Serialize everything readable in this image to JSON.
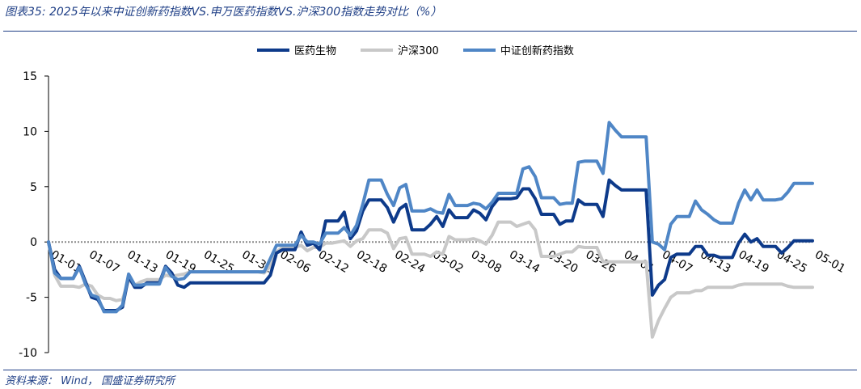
{
  "title": "图表35:  2025年以来中证创新药指数VS.申万医药指数VS.沪深300指数走势对比（%）",
  "source": "资料来源： Wind， 国盛证券研究所",
  "chart_data": {
    "type": "line",
    "title": "",
    "xlabel": "",
    "ylabel": "",
    "ylim": [
      -10,
      15
    ],
    "yticks": [
      -10,
      -5,
      0,
      5,
      10,
      15
    ],
    "legend_position": "top-center",
    "grid": false,
    "x_tick_labels": [
      "01-01",
      "01-07",
      "01-13",
      "01-19",
      "01-25",
      "01-31",
      "02-06",
      "02-12",
      "02-18",
      "02-24",
      "03-02",
      "03-08",
      "03-14",
      "03-20",
      "03-26",
      "04-01",
      "04-07",
      "04-13",
      "04-19",
      "04-25",
      "05-01"
    ],
    "series": [
      {
        "name": "医药生物",
        "color": "#0d3a8a",
        "values": [
          0,
          -2.5,
          -3.3,
          -3.3,
          -3.3,
          -2.2,
          -3.6,
          -5,
          -5.2,
          -6.2,
          -6.2,
          -6.2,
          -5.9,
          -3.1,
          -4.1,
          -4.1,
          -3.7,
          -3.7,
          -3.7,
          -2.2,
          -2.8,
          -3.9,
          -4.1,
          -3.7,
          -3.7,
          -3.7,
          -3.7,
          -3.7,
          -3.7,
          -3.7,
          -3.7,
          -3.7,
          -3.7,
          -3.7,
          -3.7,
          -3.7,
          -3.0,
          -1.0,
          -0.7,
          -0.7,
          -0.7,
          0.9,
          -0.3,
          -0.1,
          -0.7,
          1.9,
          1.9,
          1.9,
          2.7,
          0.3,
          1.0,
          2.8,
          3.8,
          3.8,
          3.8,
          3.1,
          1.8,
          3.0,
          3.4,
          1.1,
          1.1,
          1.1,
          1.6,
          2.3,
          1.4,
          2.9,
          2.2,
          2.2,
          2.2,
          2.9,
          2.6,
          2.0,
          3.2,
          3.9,
          3.9,
          3.9,
          4.0,
          4.8,
          4.8,
          3.9,
          2.5,
          2.5,
          2.5,
          1.6,
          1.9,
          1.9,
          3.8,
          3.4,
          3.4,
          3.4,
          2.3,
          5.6,
          5.1,
          4.7,
          4.7,
          4.7,
          4.7,
          4.7,
          -4.8,
          -3.9,
          -3.4,
          -1.4,
          -1.1,
          -1.1,
          -1.1,
          -0.4,
          -0.4,
          -1.2,
          -1.2,
          -1.4,
          -1.4,
          -1.4,
          -0.1,
          0.7,
          0,
          0.3,
          -0.4,
          -0.4,
          -0.4,
          -1.0,
          -0.5,
          0.1,
          0.1,
          0.1,
          0.1
        ]
      },
      {
        "name": "沪深300",
        "color": "#c8c8c8",
        "values": [
          0,
          -3.0,
          -4.0,
          -4.0,
          -4.0,
          -4.1,
          -3.8,
          -4.0,
          -4.8,
          -5.1,
          -5.1,
          -5.3,
          -5.2,
          -3.4,
          -3.9,
          -3.6,
          -3.4,
          -3.4,
          -3.4,
          -3.0,
          -3.1,
          -3.0,
          -2.9,
          -2.7,
          -2.7,
          -2.7,
          -2.7,
          -2.7,
          -2.7,
          -2.7,
          -2.7,
          -2.7,
          -2.7,
          -2.7,
          -2.7,
          -2.8,
          -2.2,
          -0.9,
          -0.5,
          -0.5,
          -0.5,
          -0.3,
          -0.8,
          -0.5,
          -0.5,
          -0.1,
          -0.1,
          0,
          0.1,
          -0.4,
          0.1,
          0.3,
          1.1,
          1.1,
          1.1,
          0.8,
          -0.6,
          0.3,
          0.4,
          -1.1,
          -1.1,
          -1.1,
          -1.3,
          -0.9,
          -1.1,
          0.5,
          0.2,
          0.2,
          0.2,
          0.3,
          0.1,
          -0.2,
          0.6,
          1.8,
          1.8,
          1.8,
          1.4,
          1.6,
          1.8,
          1.1,
          -1.3,
          -1.3,
          -1.3,
          -1.1,
          -0.9,
          -0.9,
          -0.4,
          -0.5,
          -0.5,
          -0.5,
          -1.8,
          -1.8,
          -1.8,
          -1.8,
          -1.8,
          -1.8,
          -1.8,
          -1.8,
          -8.6,
          -7.1,
          -6.0,
          -5.0,
          -4.6,
          -4.6,
          -4.6,
          -4.4,
          -4.4,
          -4.1,
          -4.1,
          -4.1,
          -4.1,
          -4.1,
          -3.9,
          -3.8,
          -3.8,
          -3.8,
          -3.8,
          -3.8,
          -3.8,
          -3.8,
          -4.0,
          -4.1,
          -4.1,
          -4.1,
          -4.1
        ]
      },
      {
        "name": "中证创新药指数",
        "color": "#4f86c6",
        "values": [
          0,
          -2.8,
          -3.3,
          -3.3,
          -3.3,
          -2.3,
          -3.8,
          -4.8,
          -5.0,
          -6.3,
          -6.3,
          -6.3,
          -5.7,
          -2.9,
          -3.9,
          -3.9,
          -3.8,
          -3.8,
          -3.8,
          -2.3,
          -3.1,
          -3.4,
          -3.3,
          -2.7,
          -2.7,
          -2.7,
          -2.7,
          -2.7,
          -2.7,
          -2.7,
          -2.7,
          -2.7,
          -2.7,
          -2.7,
          -2.7,
          -2.7,
          -1.5,
          -0.3,
          -0.3,
          -0.3,
          -0.3,
          0.6,
          0,
          0,
          -0.2,
          0.8,
          0.8,
          0.8,
          1.3,
          0.6,
          1.5,
          3.4,
          5.6,
          5.6,
          5.6,
          4.3,
          3.3,
          4.9,
          5.2,
          2.8,
          2.8,
          2.8,
          3.0,
          2.7,
          2.6,
          4.3,
          3.3,
          3.3,
          3.3,
          3.5,
          3.4,
          3.0,
          3.6,
          4.4,
          4.4,
          4.4,
          4.4,
          6.6,
          6.8,
          5.9,
          4.0,
          4.0,
          4.0,
          3.4,
          3.5,
          3.5,
          7.2,
          7.3,
          7.3,
          7.3,
          6.2,
          10.8,
          10.1,
          9.5,
          9.5,
          9.5,
          9.5,
          9.5,
          0,
          -0.2,
          -0.7,
          1.6,
          2.3,
          2.3,
          2.3,
          3.7,
          2.9,
          2.5,
          2.0,
          1.7,
          1.7,
          1.7,
          3.5,
          4.7,
          3.8,
          4.7,
          3.8,
          3.8,
          3.8,
          3.9,
          4.5,
          5.3,
          5.3,
          5.3,
          5.3
        ]
      }
    ]
  }
}
